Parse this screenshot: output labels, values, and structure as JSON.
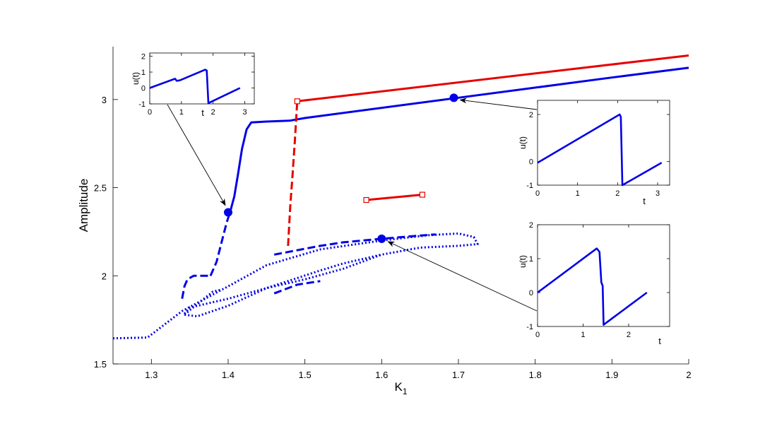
{
  "chart_data": [
    {
      "id": "main",
      "type": "line",
      "xlabel": "K",
      "xlabel_sub": "1",
      "ylabel": "Amplitude",
      "xlim": [
        1.25,
        2.0
      ],
      "ylim": [
        1.5,
        3.3
      ],
      "xticks": [
        "1.3",
        "1.4",
        "1.5",
        "1.6",
        "1.7",
        "1.8",
        "1.9",
        "2"
      ],
      "yticks": [
        "1.5",
        "2",
        "2.5",
        "3"
      ],
      "colors": {
        "blue": "#0000e6",
        "red": "#e60000"
      },
      "series": [
        {
          "color": "blue",
          "style": "solid",
          "points": [
            [
              1.403,
              2.37
            ],
            [
              1.408,
              2.45
            ],
            [
              1.413,
              2.58
            ],
            [
              1.418,
              2.72
            ],
            [
              1.424,
              2.83
            ],
            [
              1.43,
              2.87
            ],
            [
              1.45,
              2.875
            ],
            [
              1.48,
              2.88
            ],
            [
              1.5,
              2.895
            ],
            [
              1.7,
              3.01
            ],
            [
              1.9,
              3.125
            ],
            [
              2.0,
              3.18
            ]
          ]
        },
        {
          "color": "blue",
          "style": "dashed",
          "points": [
            [
              1.377,
              2.0
            ],
            [
              1.385,
              2.08
            ],
            [
              1.392,
              2.2
            ],
            [
              1.398,
              2.3
            ],
            [
              1.403,
              2.37
            ]
          ]
        },
        {
          "color": "blue",
          "style": "dashed",
          "points": [
            [
              1.34,
              1.87
            ],
            [
              1.343,
              1.94
            ],
            [
              1.347,
              1.98
            ],
            [
              1.355,
              2.0
            ],
            [
              1.377,
              2.0
            ]
          ]
        },
        {
          "color": "blue",
          "style": "dotted",
          "points": [
            [
              1.25,
              1.645
            ],
            [
              1.295,
              1.65
            ],
            [
              1.31,
              1.7
            ],
            [
              1.34,
              1.8
            ],
            [
              1.4,
              1.94
            ],
            [
              1.45,
              2.06
            ],
            [
              1.52,
              2.15
            ],
            [
              1.6,
              2.2
            ],
            [
              1.66,
              2.23
            ],
            [
              1.7,
              2.24
            ],
            [
              1.72,
              2.22
            ],
            [
              1.725,
              2.18
            ],
            [
              1.7,
              2.17
            ],
            [
              1.65,
              2.16
            ],
            [
              1.6,
              2.12
            ],
            [
              1.55,
              2.04
            ],
            [
              1.5,
              1.98
            ],
            [
              1.45,
              1.93
            ],
            [
              1.4,
              1.87
            ],
            [
              1.35,
              1.82
            ],
            [
              1.342,
              1.78
            ],
            [
              1.36,
              1.77
            ],
            [
              1.4,
              1.83
            ],
            [
              1.45,
              1.93
            ],
            [
              1.52,
              2.03
            ],
            [
              1.55,
              2.07
            ],
            [
              1.6,
              2.12
            ]
          ]
        },
        {
          "color": "blue",
          "style": "dotted",
          "points": [
            [
              1.343,
              1.78
            ],
            [
              1.36,
              1.84
            ],
            [
              1.38,
              1.91
            ],
            [
              1.39,
              1.92
            ]
          ]
        },
        {
          "color": "blue",
          "style": "dashed",
          "points": [
            [
              1.46,
              2.12
            ],
            [
              1.52,
              2.17
            ],
            [
              1.55,
              2.19
            ],
            [
              1.6,
              2.21
            ],
            [
              1.64,
              2.225
            ],
            [
              1.67,
              2.235
            ]
          ]
        },
        {
          "color": "blue",
          "style": "dashed",
          "points": [
            [
              1.46,
              1.9
            ],
            [
              1.49,
              1.95
            ],
            [
              1.52,
              1.97
            ]
          ]
        },
        {
          "color": "red",
          "style": "solid",
          "points": [
            [
              1.49,
              2.99
            ],
            [
              2.0,
              3.25
            ]
          ]
        },
        {
          "color": "red",
          "style": "dashed",
          "points": [
            [
              1.478,
              2.17
            ],
            [
              1.481,
              2.4
            ],
            [
              1.484,
              2.58
            ],
            [
              1.487,
              2.77
            ],
            [
              1.49,
              2.99
            ]
          ]
        },
        {
          "color": "red",
          "style": "solid",
          "points": [
            [
              1.58,
              2.43
            ],
            [
              1.653,
              2.46
            ]
          ]
        }
      ],
      "markers": [
        {
          "color": "blue",
          "shape": "circle",
          "x": 1.4,
          "y": 2.36
        },
        {
          "color": "blue",
          "shape": "circle",
          "x": 1.694,
          "y": 3.01
        },
        {
          "color": "blue",
          "shape": "circle",
          "x": 1.6,
          "y": 2.21
        },
        {
          "color": "red",
          "shape": "square",
          "x": 1.49,
          "y": 2.99
        },
        {
          "color": "red",
          "shape": "square",
          "x": 1.58,
          "y": 2.43
        },
        {
          "color": "red",
          "shape": "square",
          "x": 1.653,
          "y": 2.46
        }
      ]
    },
    {
      "id": "inset-top-left",
      "type": "line",
      "xlabel": "t",
      "ylabel": "u(t)",
      "xlim": [
        0,
        3.3
      ],
      "ylim": [
        -1,
        2.2
      ],
      "xticks": [
        "0",
        "1",
        "2",
        "3"
      ],
      "yticks": [
        "-1",
        "0",
        "1",
        "2"
      ],
      "series": [
        {
          "color": "blue",
          "points": [
            [
              0,
              0.0
            ],
            [
              0.8,
              0.58
            ],
            [
              0.85,
              0.45
            ],
            [
              0.95,
              0.48
            ],
            [
              1.75,
              1.15
            ],
            [
              1.8,
              1.1
            ],
            [
              1.85,
              -0.95
            ],
            [
              2.85,
              0.0
            ]
          ]
        }
      ]
    },
    {
      "id": "inset-right-middle",
      "type": "line",
      "xlabel": "t",
      "ylabel": "u(t)",
      "xlim": [
        0,
        3.3
      ],
      "ylim": [
        -1,
        2.6
      ],
      "xticks": [
        "0",
        "1",
        "2",
        "3"
      ],
      "yticks": [
        "-1",
        "0",
        "2"
      ],
      "series": [
        {
          "color": "blue",
          "points": [
            [
              0,
              -0.05
            ],
            [
              2.05,
              2.0
            ],
            [
              2.08,
              1.9
            ],
            [
              2.12,
              -1.0
            ],
            [
              3.1,
              -0.05
            ]
          ]
        }
      ]
    },
    {
      "id": "inset-right-bottom",
      "type": "line",
      "xlabel": "t",
      "ylabel": "u(t)",
      "xlim": [
        0,
        2.9
      ],
      "ylim": [
        -1,
        2
      ],
      "xticks": [
        "0",
        "1",
        "2"
      ],
      "yticks": [
        "-1",
        "0",
        "1",
        "2"
      ],
      "series": [
        {
          "color": "blue",
          "points": [
            [
              0,
              0.0
            ],
            [
              1.3,
              1.3
            ],
            [
              1.36,
              1.2
            ],
            [
              1.4,
              0.3
            ],
            [
              1.43,
              0.2
            ],
            [
              1.45,
              -0.95
            ],
            [
              1.7,
              -0.7
            ],
            [
              1.9,
              -0.5
            ],
            [
              2.4,
              0.0
            ]
          ]
        }
      ]
    }
  ]
}
